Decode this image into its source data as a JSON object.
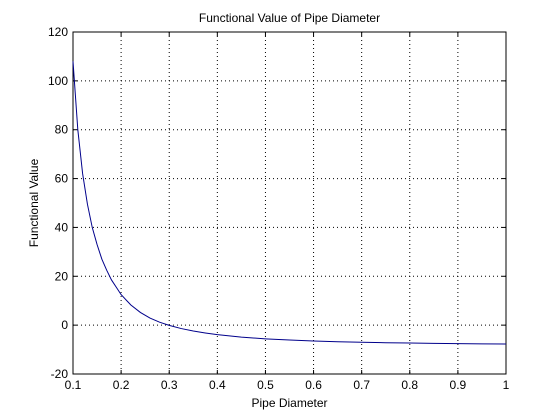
{
  "chart_data": {
    "type": "line",
    "title": "Functional Value of Pipe Diameter",
    "xlabel": "Pipe Diameter",
    "ylabel": "Functional Value",
    "xlim": [
      0.1,
      1
    ],
    "ylim": [
      -20,
      120
    ],
    "xticks": [
      0.1,
      0.2,
      0.3,
      0.4,
      0.5,
      0.6,
      0.7,
      0.8,
      0.9,
      1
    ],
    "xtick_labels": [
      "0.1",
      "0.2",
      "0.3",
      "0.4",
      "0.5",
      "0.6",
      "0.7",
      "0.8",
      "0.9",
      "1"
    ],
    "yticks": [
      -20,
      0,
      20,
      40,
      60,
      80,
      100,
      120
    ],
    "ytick_labels": [
      "-20",
      "0",
      "20",
      "40",
      "60",
      "80",
      "100",
      "120"
    ],
    "grid": true,
    "line_color": "#00008b",
    "series": [
      {
        "x": [
          0.1,
          0.11,
          0.12,
          0.13,
          0.14,
          0.15,
          0.16,
          0.17,
          0.18,
          0.19,
          0.2,
          0.22,
          0.24,
          0.26,
          0.28,
          0.3,
          0.325,
          0.35,
          0.375,
          0.4,
          0.45,
          0.5,
          0.55,
          0.6,
          0.65,
          0.7,
          0.75,
          0.8,
          0.85,
          0.9,
          0.95,
          1.0
        ],
        "y": [
          108,
          80,
          62,
          49.5,
          40,
          33,
          27,
          22.5,
          18.5,
          15.5,
          12.5,
          8.3,
          5.2,
          2.9,
          1.2,
          -0.1,
          -1.4,
          -2.4,
          -3.2,
          -3.9,
          -4.9,
          -5.6,
          -6.1,
          -6.5,
          -6.8,
          -7.0,
          -7.2,
          -7.3,
          -7.45,
          -7.55,
          -7.65,
          -7.7
        ]
      }
    ]
  }
}
